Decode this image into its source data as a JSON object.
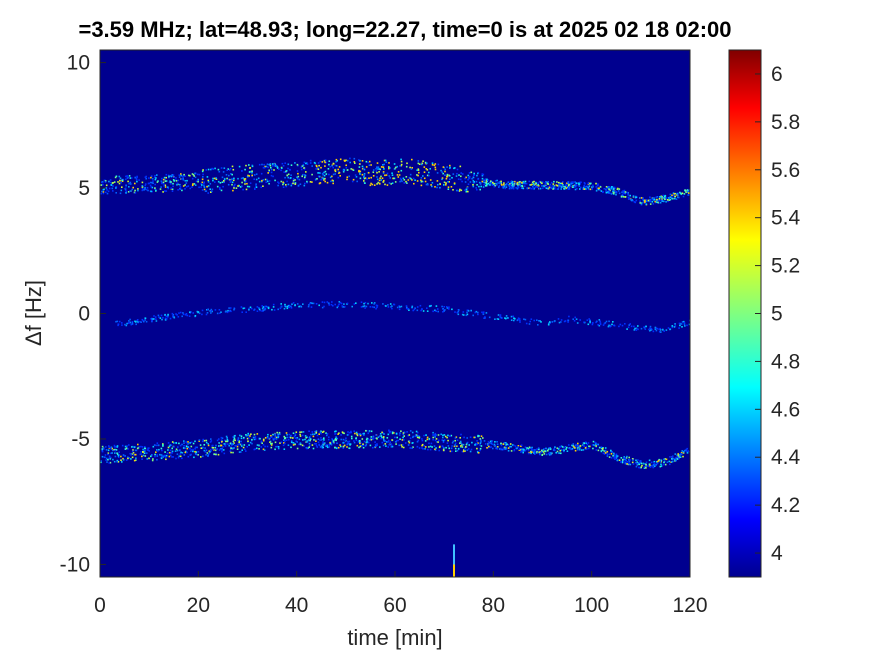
{
  "chart_data": {
    "type": "heatmap",
    "title": "=3.59 MHz;  lat=48.93; long=22.27, time=0 is at 2025 02 18 02:00",
    "xlabel": "time [min]",
    "ylabel": "Δf [Hz]",
    "xlim": [
      0,
      120
    ],
    "ylim": [
      -10.5,
      10.5
    ],
    "xticks": [
      "0",
      "20",
      "40",
      "60",
      "80",
      "100",
      "120"
    ],
    "yticks": [
      "-10",
      "-5",
      "0",
      "5",
      "10"
    ],
    "colorbar": {
      "range": [
        3.9,
        6.1
      ],
      "ticks": [
        "4",
        "4.2",
        "4.4",
        "4.6",
        "4.8",
        "5",
        "5.2",
        "5.4",
        "5.6",
        "5.8",
        "6"
      ],
      "colormap": "jet"
    },
    "background_color": "#00008f",
    "traces": [
      {
        "label": "upper",
        "points": [
          [
            0,
            5.15
          ],
          [
            10,
            5.2
          ],
          [
            20,
            5.3
          ],
          [
            30,
            5.45
          ],
          [
            40,
            5.6
          ],
          [
            50,
            5.75
          ],
          [
            55,
            5.6
          ],
          [
            62,
            5.7
          ],
          [
            68,
            5.55
          ],
          [
            75,
            5.35
          ],
          [
            82,
            5.15
          ],
          [
            90,
            5.15
          ],
          [
            100,
            5.1
          ],
          [
            105,
            4.9
          ],
          [
            110,
            4.5
          ],
          [
            115,
            4.6
          ],
          [
            120,
            4.9
          ]
        ]
      },
      {
        "label": "middle",
        "points": [
          [
            3,
            -0.4
          ],
          [
            10,
            -0.2
          ],
          [
            20,
            0.05
          ],
          [
            30,
            0.2
          ],
          [
            40,
            0.35
          ],
          [
            50,
            0.4
          ],
          [
            60,
            0.3
          ],
          [
            70,
            0.2
          ],
          [
            80,
            -0.1
          ],
          [
            90,
            -0.35
          ],
          [
            95,
            -0.2
          ],
          [
            100,
            -0.3
          ],
          [
            110,
            -0.55
          ],
          [
            115,
            -0.6
          ],
          [
            120,
            -0.3
          ]
        ]
      },
      {
        "label": "lower",
        "points": [
          [
            0,
            -5.6
          ],
          [
            10,
            -5.5
          ],
          [
            20,
            -5.35
          ],
          [
            30,
            -5.1
          ],
          [
            40,
            -5.0
          ],
          [
            50,
            -5.0
          ],
          [
            60,
            -4.95
          ],
          [
            70,
            -5.1
          ],
          [
            80,
            -5.2
          ],
          [
            90,
            -5.5
          ],
          [
            100,
            -5.2
          ],
          [
            105,
            -5.7
          ],
          [
            110,
            -6.0
          ],
          [
            115,
            -5.9
          ],
          [
            120,
            -5.4
          ]
        ]
      }
    ],
    "spike": {
      "x": 72,
      "y_from": -10.5,
      "y_to": -9.2
    }
  }
}
